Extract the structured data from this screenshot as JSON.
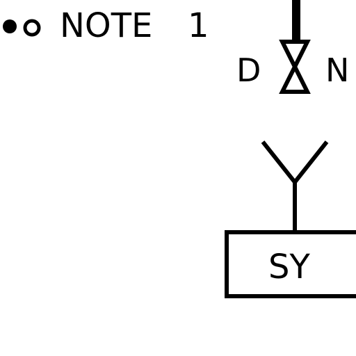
{
  "note": {
    "label": "NOTE",
    "number": "1"
  },
  "valve": {
    "left_label": "D",
    "right_label": "N"
  },
  "block": {
    "label": "SY"
  },
  "colors": {
    "ink": "#000000",
    "background": "#ffffff"
  }
}
